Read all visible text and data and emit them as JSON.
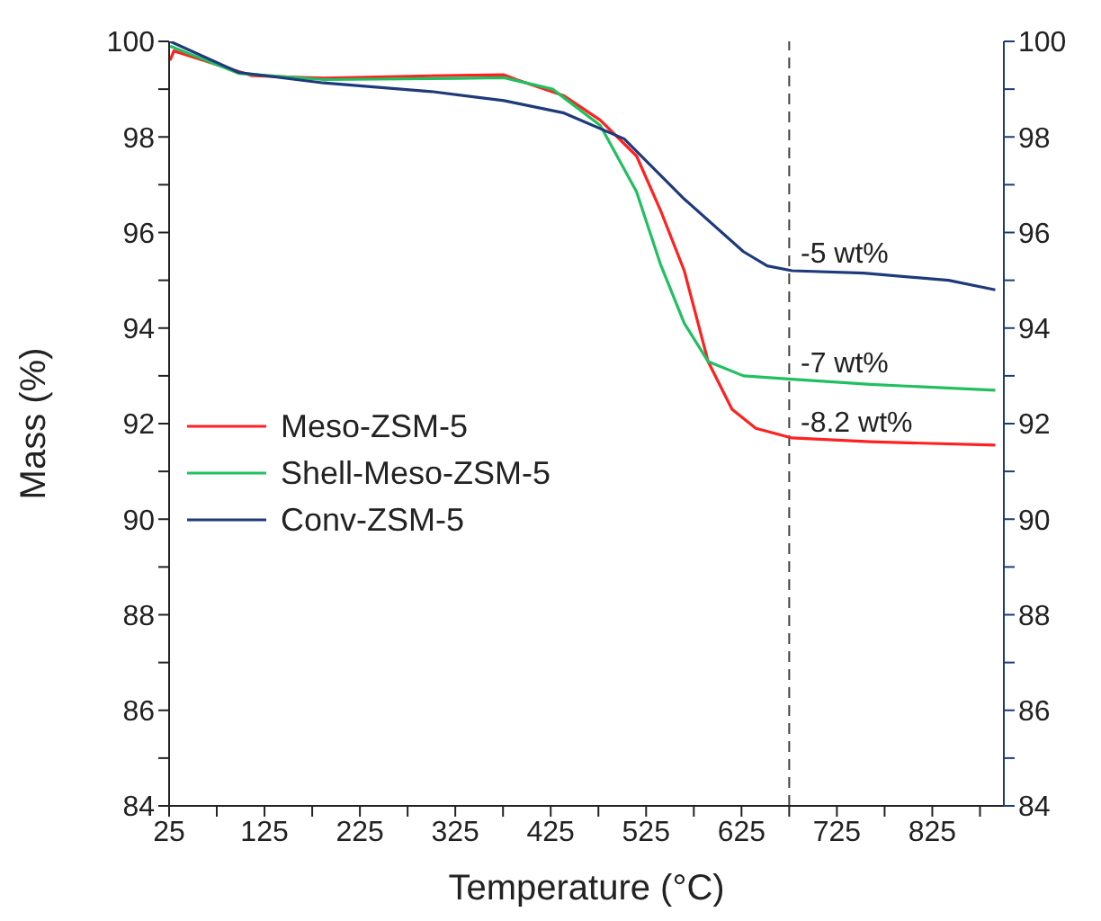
{
  "chart_data": {
    "type": "line",
    "xlabel": "Temperature (°C)",
    "ylabel": "Mass (%)",
    "xlim": [
      25,
      900
    ],
    "xticks": [
      25,
      {
        "value": 75,
        "label": null
      },
      125,
      {
        "value": 175,
        "label": null
      },
      225,
      {
        "value": 275,
        "label": null
      },
      325,
      {
        "value": 375,
        "label": null
      },
      425,
      {
        "value": 475,
        "label": null
      },
      525,
      {
        "value": 575,
        "label": null
      },
      625,
      {
        "value": 675,
        "label": null
      },
      725,
      {
        "value": 775,
        "label": null
      },
      825,
      {
        "value": 875,
        "label": null
      }
    ],
    "ylim": [
      84,
      100
    ],
    "yticks": [
      84,
      {
        "value": 85,
        "label": null
      },
      86,
      {
        "value": 87,
        "label": null
      },
      88,
      {
        "value": 89,
        "label": null
      },
      90,
      {
        "value": 91,
        "label": null
      },
      92,
      {
        "value": 93,
        "label": null
      },
      94,
      {
        "value": 95,
        "label": null
      },
      96,
      {
        "value": 97,
        "label": null
      },
      98,
      {
        "value": 99,
        "label": null
      },
      100
    ],
    "y2lim": [
      84,
      100
    ],
    "y2ticks": [
      84,
      {
        "value": 85,
        "label": null
      },
      86,
      {
        "value": 87,
        "label": null
      },
      88,
      {
        "value": 89,
        "label": null
      },
      90,
      {
        "value": 91,
        "label": null
      },
      92,
      {
        "value": 93,
        "label": null
      },
      94,
      {
        "value": 95,
        "label": null
      },
      96,
      {
        "value": 97,
        "label": null
      },
      98,
      {
        "value": 99,
        "label": null
      },
      100
    ],
    "grid": false,
    "legend": "left",
    "marker": "none",
    "line_style": "solid",
    "series": [
      {
        "name": "Meso-ZSM-5",
        "color": "#ff2020",
        "x": [
          26,
          30,
          112,
          187,
          300,
          376,
          389,
          439,
          477,
          515,
          540,
          565,
          590,
          615,
          640,
          678,
          760,
          891
        ],
        "values": [
          99.6,
          99.8,
          99.28,
          99.23,
          99.28,
          99.3,
          99.2,
          98.86,
          98.35,
          97.6,
          96.47,
          95.2,
          93.3,
          92.3,
          91.9,
          91.7,
          91.62,
          91.55
        ]
      },
      {
        "name": "Shell-Meso-ZSM-5",
        "color": "#20c060",
        "x": [
          26,
          98,
          187,
          300,
          376,
          427,
          477,
          515,
          540,
          565,
          590,
          627,
          678,
          760,
          891
        ],
        "values": [
          99.9,
          99.33,
          99.2,
          99.22,
          99.24,
          99.0,
          98.24,
          96.85,
          95.34,
          94.1,
          93.3,
          93.0,
          92.93,
          92.82,
          92.7
        ]
      },
      {
        "name": "Conv-ZSM-5",
        "color": "#1f3a7a",
        "x": [
          26,
          98,
          187,
          300,
          376,
          439,
          502,
          565,
          627,
          652,
          678,
          753,
          842,
          891
        ],
        "values": [
          100,
          99.35,
          99.13,
          98.95,
          98.76,
          98.5,
          97.96,
          96.7,
          95.6,
          95.3,
          95.2,
          95.15,
          95.0,
          94.8
        ]
      }
    ],
    "ref_lines": [
      {
        "axis": "x",
        "value": 675,
        "color": "#404040",
        "line_style": "dashed"
      }
    ],
    "annotations": [
      "-5 wt%",
      "-7 wt%",
      "-8.2 wt%"
    ]
  }
}
